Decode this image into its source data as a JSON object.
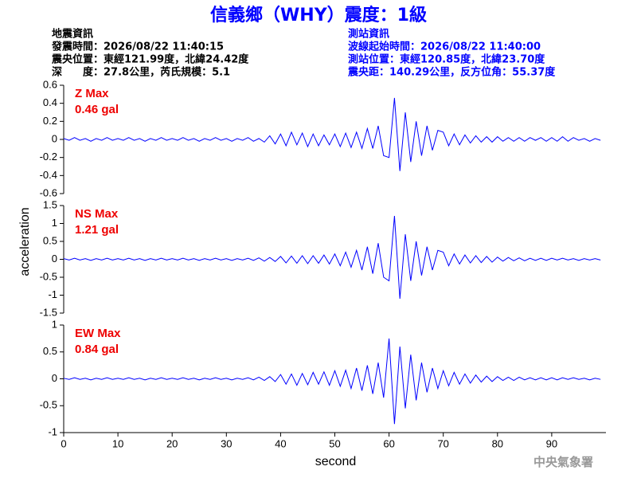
{
  "header": {
    "title": "信義鄉（WHY）震度：1級",
    "left": [
      "地震資訊",
      "發震時間：2026/08/22 11:40:15",
      "震央位置：東經121.99度，北緯24.42度",
      "深　　度：27.8公里，芮氏規模：5.1"
    ],
    "right": [
      "測站資訊",
      "波線起始時間：2026/08/22 11:40:00",
      "測站位置：東經120.85度，北緯23.70度",
      "震央距：140.29公里，反方位角：55.37度"
    ]
  },
  "credit": "中央氣象署",
  "chart_data": [
    {
      "type": "line",
      "label": "Z Max",
      "max_label": "0.46 gal",
      "color": "#0000ff",
      "xlim": [
        0,
        100
      ],
      "ylim": [
        -0.6,
        0.6
      ],
      "yticks": [
        0.6,
        0.4,
        0.2,
        0,
        -0.2,
        -0.4,
        -0.6
      ],
      "x": [
        0,
        1,
        2,
        3,
        4,
        5,
        6,
        7,
        8,
        9,
        10,
        11,
        12,
        13,
        14,
        15,
        16,
        17,
        18,
        19,
        20,
        21,
        22,
        23,
        24,
        25,
        26,
        27,
        28,
        29,
        30,
        31,
        32,
        33,
        34,
        35,
        36,
        37,
        38,
        39,
        40,
        41,
        42,
        43,
        44,
        45,
        46,
        47,
        48,
        49,
        50,
        51,
        52,
        53,
        54,
        55,
        56,
        57,
        58,
        59,
        60,
        61,
        62,
        63,
        64,
        65,
        66,
        67,
        68,
        69,
        70,
        71,
        72,
        73,
        74,
        75,
        76,
        77,
        78,
        79,
        80,
        81,
        82,
        83,
        84,
        85,
        86,
        87,
        88,
        89,
        90,
        91,
        92,
        93,
        94,
        95,
        96,
        97,
        98,
        99
      ],
      "values": [
        0.01,
        -0.01,
        0.02,
        -0.01,
        0.01,
        -0.02,
        0.01,
        -0.01,
        0.02,
        -0.01,
        0.01,
        -0.01,
        0.02,
        -0.01,
        0.01,
        -0.02,
        0.01,
        -0.01,
        0.02,
        -0.01,
        0.01,
        -0.01,
        0.02,
        -0.01,
        0.01,
        -0.02,
        0.01,
        -0.01,
        0.02,
        -0.01,
        0.01,
        -0.02,
        0.01,
        -0.01,
        0.02,
        -0.02,
        0.01,
        -0.03,
        0.04,
        -0.05,
        0.06,
        -0.07,
        0.08,
        -0.06,
        0.07,
        -0.08,
        0.06,
        -0.07,
        0.05,
        -0.06,
        0.06,
        -0.08,
        0.07,
        -0.09,
        0.08,
        -0.1,
        0.12,
        -0.1,
        0.15,
        -0.18,
        -0.2,
        0.46,
        -0.35,
        0.3,
        -0.25,
        0.2,
        -0.18,
        0.15,
        -0.12,
        0.1,
        0.08,
        -0.07,
        0.06,
        -0.06,
        0.05,
        -0.04,
        0.04,
        -0.03,
        0.03,
        -0.03,
        0.03,
        -0.02,
        0.02,
        -0.02,
        0.02,
        -0.02,
        0.02,
        -0.01,
        0.02,
        -0.02,
        0.02,
        -0.02,
        0.03,
        -0.02,
        0.02,
        -0.01,
        0.01,
        -0.02,
        0.01,
        -0.01
      ]
    },
    {
      "type": "line",
      "label": "NS Max",
      "max_label": "1.21 gal",
      "ylabel": "acceleration",
      "color": "#0000ff",
      "xlim": [
        0,
        100
      ],
      "ylim": [
        -1.5,
        1.5
      ],
      "yticks": [
        1.5,
        1,
        0.5,
        0,
        -0.5,
        -1,
        -1.5
      ],
      "x": [
        0,
        1,
        2,
        3,
        4,
        5,
        6,
        7,
        8,
        9,
        10,
        11,
        12,
        13,
        14,
        15,
        16,
        17,
        18,
        19,
        20,
        21,
        22,
        23,
        24,
        25,
        26,
        27,
        28,
        29,
        30,
        31,
        32,
        33,
        34,
        35,
        36,
        37,
        38,
        39,
        40,
        41,
        42,
        43,
        44,
        45,
        46,
        47,
        48,
        49,
        50,
        51,
        52,
        53,
        54,
        55,
        56,
        57,
        58,
        59,
        60,
        61,
        62,
        63,
        64,
        65,
        66,
        67,
        68,
        69,
        70,
        71,
        72,
        73,
        74,
        75,
        76,
        77,
        78,
        79,
        80,
        81,
        82,
        83,
        84,
        85,
        86,
        87,
        88,
        89,
        90,
        91,
        92,
        93,
        94,
        95,
        96,
        97,
        98,
        99
      ],
      "values": [
        0.02,
        -0.02,
        0.03,
        -0.02,
        0.02,
        -0.03,
        0.02,
        -0.02,
        0.03,
        -0.02,
        0.02,
        -0.02,
        0.03,
        -0.02,
        0.02,
        -0.03,
        0.02,
        -0.02,
        0.03,
        -0.02,
        0.02,
        -0.02,
        0.03,
        -0.02,
        0.02,
        -0.03,
        0.02,
        -0.02,
        0.03,
        -0.02,
        0.02,
        -0.03,
        0.02,
        -0.02,
        0.03,
        -0.03,
        0.04,
        -0.05,
        0.05,
        -0.06,
        0.08,
        -0.1,
        0.09,
        -0.11,
        0.1,
        -0.12,
        0.1,
        -0.11,
        0.12,
        -0.13,
        0.15,
        -0.18,
        0.2,
        -0.22,
        0.25,
        -0.3,
        0.35,
        -0.4,
        0.45,
        -0.5,
        -0.6,
        1.21,
        -1.1,
        0.7,
        -0.6,
        0.5,
        -0.45,
        0.35,
        -0.3,
        0.25,
        0.2,
        -0.18,
        0.15,
        -0.13,
        0.12,
        -0.1,
        0.1,
        -0.09,
        0.08,
        -0.08,
        0.06,
        -0.05,
        0.05,
        -0.04,
        0.04,
        -0.04,
        0.03,
        -0.03,
        0.03,
        -0.03,
        0.03,
        -0.02,
        0.03,
        -0.02,
        0.02,
        -0.03,
        0.02,
        -0.02,
        0.02,
        -0.02
      ]
    },
    {
      "type": "line",
      "label": "EW Max",
      "max_label": "0.84 gal",
      "xlabel": "second",
      "color": "#0000ff",
      "xlim": [
        0,
        100
      ],
      "xticks": [
        0,
        10,
        20,
        30,
        40,
        50,
        60,
        70,
        80,
        90
      ],
      "ylim": [
        -1,
        1
      ],
      "yticks": [
        1,
        0.5,
        0,
        -0.5,
        -1
      ],
      "x": [
        0,
        1,
        2,
        3,
        4,
        5,
        6,
        7,
        8,
        9,
        10,
        11,
        12,
        13,
        14,
        15,
        16,
        17,
        18,
        19,
        20,
        21,
        22,
        23,
        24,
        25,
        26,
        27,
        28,
        29,
        30,
        31,
        32,
        33,
        34,
        35,
        36,
        37,
        38,
        39,
        40,
        41,
        42,
        43,
        44,
        45,
        46,
        47,
        48,
        49,
        50,
        51,
        52,
        53,
        54,
        55,
        56,
        57,
        58,
        59,
        60,
        61,
        62,
        63,
        64,
        65,
        66,
        67,
        68,
        69,
        70,
        71,
        72,
        73,
        74,
        75,
        76,
        77,
        78,
        79,
        80,
        81,
        82,
        83,
        84,
        85,
        86,
        87,
        88,
        89,
        90,
        91,
        92,
        93,
        94,
        95,
        96,
        97,
        98,
        99
      ],
      "values": [
        0.01,
        -0.01,
        0.02,
        -0.01,
        0.01,
        -0.02,
        0.01,
        -0.01,
        0.02,
        -0.01,
        0.01,
        -0.01,
        0.02,
        -0.01,
        0.01,
        -0.02,
        0.01,
        -0.01,
        0.02,
        -0.01,
        0.01,
        -0.01,
        0.02,
        -0.01,
        0.01,
        -0.02,
        0.01,
        -0.01,
        0.02,
        -0.01,
        0.01,
        -0.02,
        0.01,
        -0.01,
        0.02,
        -0.02,
        0.03,
        -0.03,
        0.04,
        -0.05,
        0.08,
        -0.1,
        0.09,
        -0.12,
        0.1,
        -0.11,
        0.12,
        -0.1,
        0.13,
        -0.12,
        0.15,
        -0.14,
        0.16,
        -0.18,
        0.2,
        -0.22,
        0.25,
        -0.28,
        0.3,
        -0.35,
        0.75,
        -0.84,
        0.6,
        -0.55,
        0.45,
        -0.4,
        0.3,
        -0.25,
        0.2,
        -0.18,
        0.15,
        -0.13,
        0.12,
        -0.1,
        0.09,
        -0.08,
        0.07,
        -0.06,
        0.05,
        -0.05,
        0.04,
        -0.03,
        0.03,
        -0.03,
        0.03,
        -0.02,
        0.02,
        -0.02,
        0.02,
        -0.02,
        0.02,
        -0.02,
        0.02,
        -0.01,
        0.02,
        -0.01,
        0.01,
        -0.02,
        0.01,
        -0.01
      ]
    }
  ]
}
